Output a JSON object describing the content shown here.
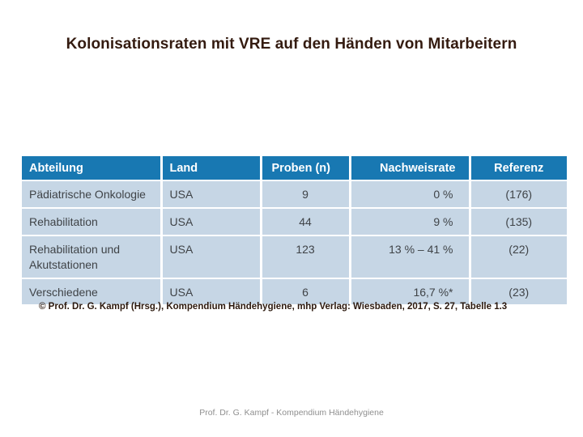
{
  "slide": {
    "title": "Kolonisationsraten mit VRE auf den Händen von Mitarbeitern",
    "citation": "© Prof. Dr. G. Kampf (Hrsg.), Kompendium Händehygiene, mhp Verlag: Wiesbaden, 2017, S. 27, Tabelle 1.3",
    "footer": "Prof. Dr. G. Kampf - Kompendium Händehygiene"
  },
  "table": {
    "headers": [
      "Abteilung",
      "Land",
      "Proben (n)",
      "Nachweisrate",
      "Referenz"
    ],
    "rows": [
      [
        "Pädiatrische Onkologie",
        "USA",
        "9",
        "0 %",
        "(176)"
      ],
      [
        "Rehabilitation",
        "USA",
        "44",
        "9 %",
        "(135)"
      ],
      [
        "Rehabilitation und Akutstationen",
        "USA",
        "123",
        "13 % – 41 %",
        "(22)"
      ],
      [
        "Verschiedene",
        "USA",
        "6",
        "16,7 %*",
        "(23)"
      ]
    ]
  },
  "colors": {
    "table_header_bg": "#1878b2",
    "table_row_bg": "#c6d6e5",
    "table_header_text": "#ffffff",
    "table_body_text": "#3f4347",
    "title_text": "#341b10",
    "footer_text": "#8f8f8f",
    "background": "#ffffff"
  }
}
